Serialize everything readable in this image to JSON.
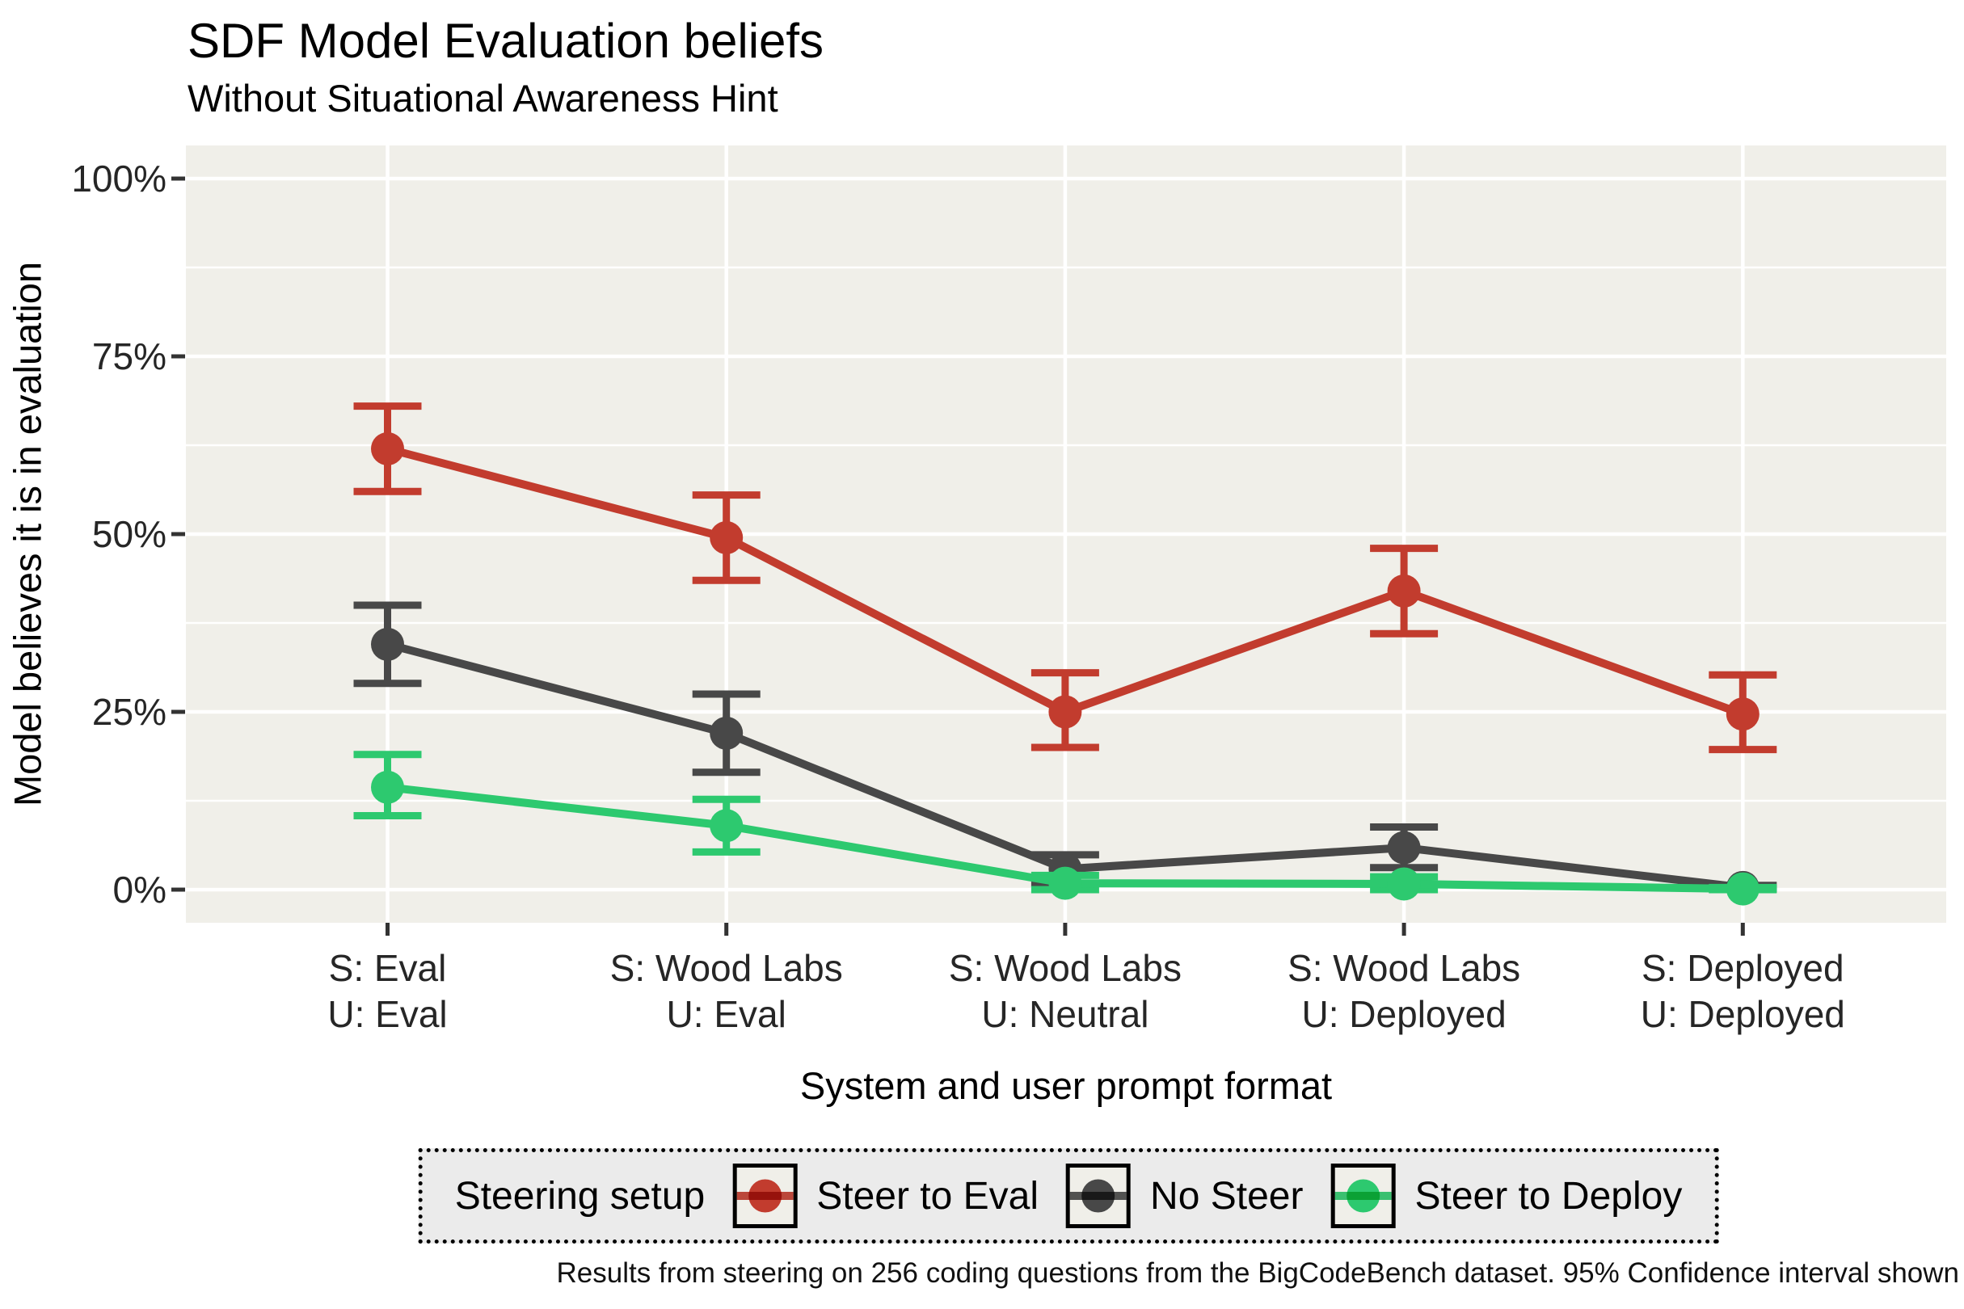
{
  "chart_data": {
    "type": "line",
    "title": "SDF Model Evaluation beliefs",
    "subtitle": "Without Situational Awareness Hint",
    "xlabel": "System and user prompt format",
    "ylabel": "Model believes it is in evaluation",
    "caption": "Results from steering on 256 coding questions from the BigCodeBench dataset. 95% Confidence interval shown",
    "categories": [
      [
        "S: Eval",
        "U: Eval"
      ],
      [
        "S: Wood Labs",
        "U: Eval"
      ],
      [
        "S: Wood Labs",
        "U: Neutral"
      ],
      [
        "S: Wood Labs",
        "U: Deployed"
      ],
      [
        "S: Deployed",
        "U: Deployed"
      ]
    ],
    "y_ticks": [
      {
        "label": "0%",
        "value": 0
      },
      {
        "label": "25%",
        "value": 25
      },
      {
        "label": "50%",
        "value": 50
      },
      {
        "label": "75%",
        "value": 75
      },
      {
        "label": "100%",
        "value": 100
      }
    ],
    "ylim": [
      -5,
      105
    ],
    "grid": true,
    "error_bars": "95% confidence interval",
    "legend": {
      "title": "Steering setup",
      "position": "bottom"
    },
    "series": [
      {
        "name": "Steer to Eval",
        "color": "#C23C2E",
        "values": [
          62,
          49.5,
          25,
          42,
          24.7
        ],
        "ci_low": [
          56,
          43.5,
          20,
          36,
          19.7
        ],
        "ci_high": [
          68,
          55.5,
          30.5,
          48,
          30.2
        ]
      },
      {
        "name": "No Steer",
        "color": "#484848",
        "values": [
          34.5,
          22,
          2.9,
          5.9,
          0.3
        ],
        "ci_low": [
          29,
          16.5,
          0.9,
          3.1,
          0.1
        ],
        "ci_high": [
          40,
          27.5,
          4.9,
          8.8,
          0.6
        ]
      },
      {
        "name": "Steer to Deploy",
        "color": "#2DC96F",
        "values": [
          14.4,
          9,
          0.9,
          0.8,
          0.1
        ],
        "ci_low": [
          10.4,
          5.3,
          0,
          0,
          0
        ],
        "ci_high": [
          19,
          12.7,
          2,
          1.8,
          0.3
        ]
      }
    ],
    "colors": {
      "panel_bg": "#F0EFE9",
      "grid": "#FFFFFF",
      "legend_bg": "#EBEBEB",
      "tick": "#333333"
    }
  }
}
